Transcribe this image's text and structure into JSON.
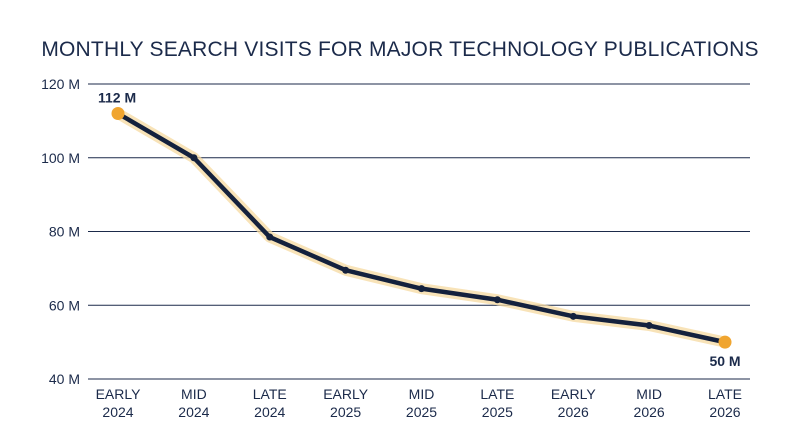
{
  "chart_data": {
    "type": "line",
    "title": "MONTHLY SEARCH VISITS FOR MAJOR TECHNOLOGY PUBLICATIONS",
    "xlabel": "",
    "ylabel": "",
    "categories": [
      [
        "EARLY",
        "2024"
      ],
      [
        "MID",
        "2024"
      ],
      [
        "LATE",
        "2024"
      ],
      [
        "EARLY",
        "2025"
      ],
      [
        "MID",
        "2025"
      ],
      [
        "LATE",
        "2025"
      ],
      [
        "EARLY",
        "2026"
      ],
      [
        "MID",
        "2026"
      ],
      [
        "LATE",
        "2026"
      ]
    ],
    "values": [
      112,
      100,
      78.5,
      69.5,
      64.5,
      61.5,
      57,
      54.5,
      50
    ],
    "ylim": [
      40,
      120
    ],
    "yticks": [
      40,
      60,
      80,
      100,
      120
    ],
    "ytick_labels": [
      "40 M",
      "60 M",
      "80 M",
      "100 M",
      "120 M"
    ],
    "grid": true,
    "annotations": [
      {
        "index": 0,
        "text": "112 M"
      },
      {
        "index": 8,
        "text": "50 M"
      }
    ],
    "colors": {
      "line": "#14213d",
      "glow": "#f6d9a0",
      "highlight_point": "#f0a530",
      "grid": "#1b2a4a",
      "text": "#1b2a4a"
    }
  }
}
